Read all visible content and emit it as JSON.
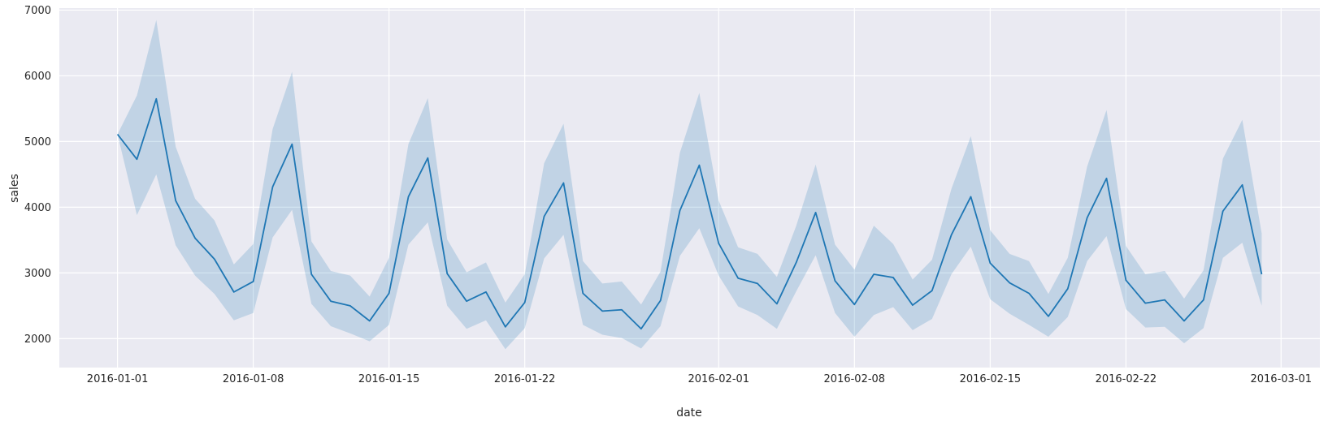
{
  "chart_data": {
    "type": "line",
    "xlabel": "date",
    "ylabel": "sales",
    "x_axis_type": "date",
    "xlim": [
      "2015-12-29",
      "2016-03-03"
    ],
    "ylim": [
      1560,
      7030
    ],
    "x_ticks": [
      "2016-01-01",
      "2016-01-08",
      "2016-01-15",
      "2016-01-22",
      "2016-02-01",
      "2016-02-08",
      "2016-02-15",
      "2016-02-22",
      "2016-03-01"
    ],
    "y_ticks": [
      2000,
      3000,
      4000,
      5000,
      6000,
      7000
    ],
    "grid": true,
    "background": "#eaeaf2",
    "grid_color": "#ffffff",
    "line_color": "#1f77b4",
    "band_color": "#1f77b4",
    "band_opacity": 0.2,
    "series": [
      {
        "x": [
          "2016-01-01",
          "2016-01-02",
          "2016-01-03",
          "2016-01-04",
          "2016-01-05",
          "2016-01-06",
          "2016-01-07",
          "2016-01-08",
          "2016-01-09",
          "2016-01-10",
          "2016-01-11",
          "2016-01-12",
          "2016-01-13",
          "2016-01-14",
          "2016-01-15",
          "2016-01-16",
          "2016-01-17",
          "2016-01-18",
          "2016-01-19",
          "2016-01-20",
          "2016-01-21",
          "2016-01-22",
          "2016-01-23",
          "2016-01-24",
          "2016-01-25",
          "2016-01-26",
          "2016-01-27",
          "2016-01-28",
          "2016-01-29",
          "2016-01-30",
          "2016-01-31",
          "2016-02-01",
          "2016-02-02",
          "2016-02-03",
          "2016-02-04",
          "2016-02-05",
          "2016-02-06",
          "2016-02-07",
          "2016-02-08",
          "2016-02-09",
          "2016-02-10",
          "2016-02-11",
          "2016-02-12",
          "2016-02-13",
          "2016-02-14",
          "2016-02-15",
          "2016-02-16",
          "2016-02-17",
          "2016-02-18",
          "2016-02-19",
          "2016-02-20",
          "2016-02-21",
          "2016-02-22",
          "2016-02-23",
          "2016-02-24",
          "2016-02-25",
          "2016-02-26",
          "2016-02-27",
          "2016-02-28",
          "2016-02-29"
        ],
        "y": [
          5110,
          4730,
          5650,
          4100,
          3530,
          3210,
          2710,
          2870,
          4310,
          4960,
          2980,
          2570,
          2500,
          2270,
          2690,
          4160,
          4750,
          2990,
          2570,
          2710,
          2180,
          2550,
          3860,
          4370,
          2690,
          2420,
          2440,
          2150,
          2580,
          3950,
          4640,
          3450,
          2920,
          2840,
          2530,
          3160,
          3920,
          2880,
          2520,
          2980,
          2930,
          2510,
          2730,
          3580,
          4160,
          3150,
          2850,
          2690,
          2340,
          2760,
          3840,
          4440,
          2890,
          2540,
          2590,
          2270,
          2590,
          3940,
          4340,
          2980
        ],
        "lower": [
          5110,
          3880,
          4500,
          3420,
          2960,
          2680,
          2280,
          2390,
          3540,
          3960,
          2530,
          2190,
          2080,
          1960,
          2210,
          3430,
          3770,
          2500,
          2150,
          2280,
          1840,
          2160,
          3220,
          3580,
          2210,
          2060,
          2010,
          1850,
          2190,
          3260,
          3680,
          2960,
          2490,
          2360,
          2150,
          2720,
          3270,
          2390,
          2030,
          2360,
          2480,
          2130,
          2300,
          2980,
          3400,
          2600,
          2380,
          2210,
          2030,
          2330,
          3180,
          3560,
          2450,
          2170,
          2180,
          1930,
          2160,
          3230,
          3460,
          2500
        ],
        "upper": [
          5110,
          5700,
          6850,
          4920,
          4130,
          3800,
          3130,
          3440,
          5190,
          6060,
          3480,
          3030,
          2960,
          2640,
          3230,
          4960,
          5660,
          3510,
          3010,
          3160,
          2550,
          2980,
          4670,
          5270,
          3180,
          2840,
          2870,
          2520,
          3020,
          4830,
          5740,
          4100,
          3390,
          3290,
          2940,
          3720,
          4650,
          3430,
          3050,
          3720,
          3440,
          2900,
          3200,
          4280,
          5080,
          3650,
          3290,
          3180,
          2680,
          3230,
          4620,
          5480,
          3410,
          2980,
          3030,
          2610,
          3040,
          4740,
          5330,
          3600
        ]
      }
    ]
  }
}
